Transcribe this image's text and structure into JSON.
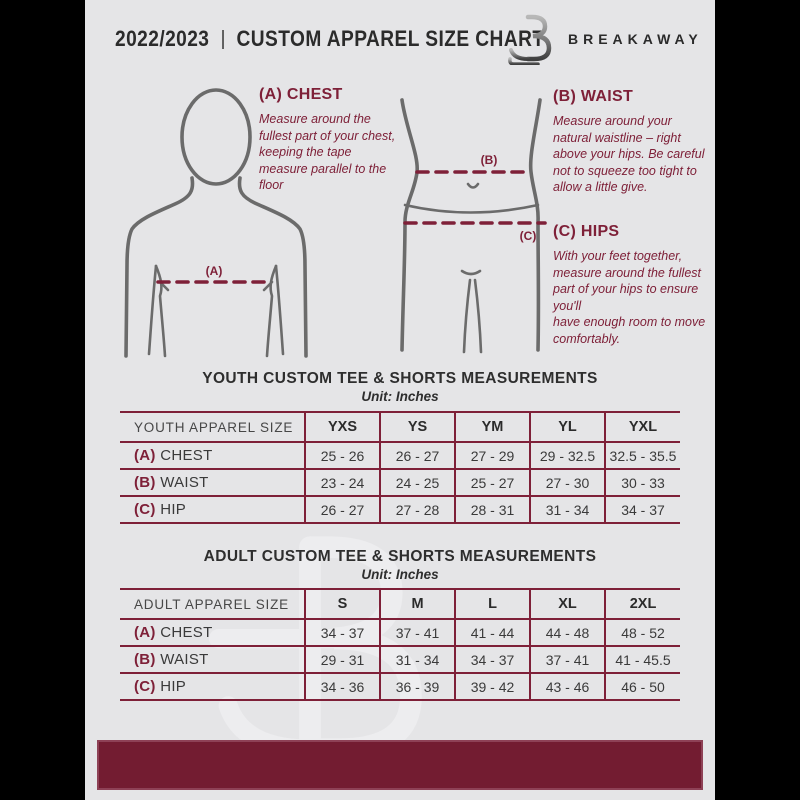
{
  "colors": {
    "maroon": "#7E2038",
    "maroon-dark": "#731C31",
    "page-bg": "#E5E5E7",
    "frame": "#000000",
    "outline": "#6B6B6B",
    "ink": "#2B2B2B",
    "wm": "#EFEFF1"
  },
  "header": {
    "year": "2022/2023",
    "separator": "|",
    "title": "CUSTOM APPAREL SIZE CHART",
    "brand": "BREAKAWAY",
    "logo_icon": "breakaway-b-logo"
  },
  "figures": {
    "chest_label": "(A)",
    "waist_label": "(B)",
    "hips_label": "(C)"
  },
  "guide": {
    "chest": {
      "heading": "(A) CHEST",
      "body": "Measure around the fullest part of your chest, keeping the tape measure parallel to the floor"
    },
    "waist": {
      "heading": "(B) WAIST",
      "body": "Measure around your natural waistline – right above your hips. Be careful not to squeeze too tight to allow a little give."
    },
    "hips": {
      "heading": "(C) HIPS",
      "body": "With your feet together, measure around the fullest part of your hips to ensure you'll\nhave enough room to move comfortably."
    }
  },
  "youth_table": {
    "title": "YOUTH CUSTOM TEE & SHORTS MEASUREMENTS",
    "unit": "Unit: Inches",
    "header": [
      "YOUTH APPAREL SIZE",
      "YXS",
      "YS",
      "YM",
      "YL",
      "YXL"
    ],
    "rows": [
      {
        "prefix": "(A)",
        "label": "CHEST",
        "values": [
          "25 - 26",
          "26 - 27",
          "27 - 29",
          "29 - 32.5",
          "32.5 - 35.5"
        ]
      },
      {
        "prefix": "(B)",
        "label": "WAIST",
        "values": [
          "23 - 24",
          "24 - 25",
          "25 - 27",
          "27 - 30",
          "30 - 33"
        ]
      },
      {
        "prefix": "(C)",
        "label": "HIP",
        "values": [
          "26 - 27",
          "27 - 28",
          "28 - 31",
          "31 - 34",
          "34 - 37"
        ]
      }
    ]
  },
  "adult_table": {
    "title": "ADULT CUSTOM TEE & SHORTS MEASUREMENTS",
    "unit": "Unit: Inches",
    "header": [
      "ADULT APPAREL SIZE",
      "S",
      "M",
      "L",
      "XL",
      "2XL"
    ],
    "rows": [
      {
        "prefix": "(A)",
        "label": "CHEST",
        "values": [
          "34 - 37",
          "37 - 41",
          "41 - 44",
          "44 - 48",
          "48 - 52"
        ]
      },
      {
        "prefix": "(B)",
        "label": "WAIST",
        "values": [
          "29 - 31",
          "31 - 34",
          "34 - 37",
          "37 - 41",
          "41 - 45.5"
        ]
      },
      {
        "prefix": "(C)",
        "label": "HIP",
        "values": [
          "34 - 36",
          "36 - 39",
          "39 - 42",
          "43 - 46",
          "46 - 50"
        ]
      }
    ]
  }
}
